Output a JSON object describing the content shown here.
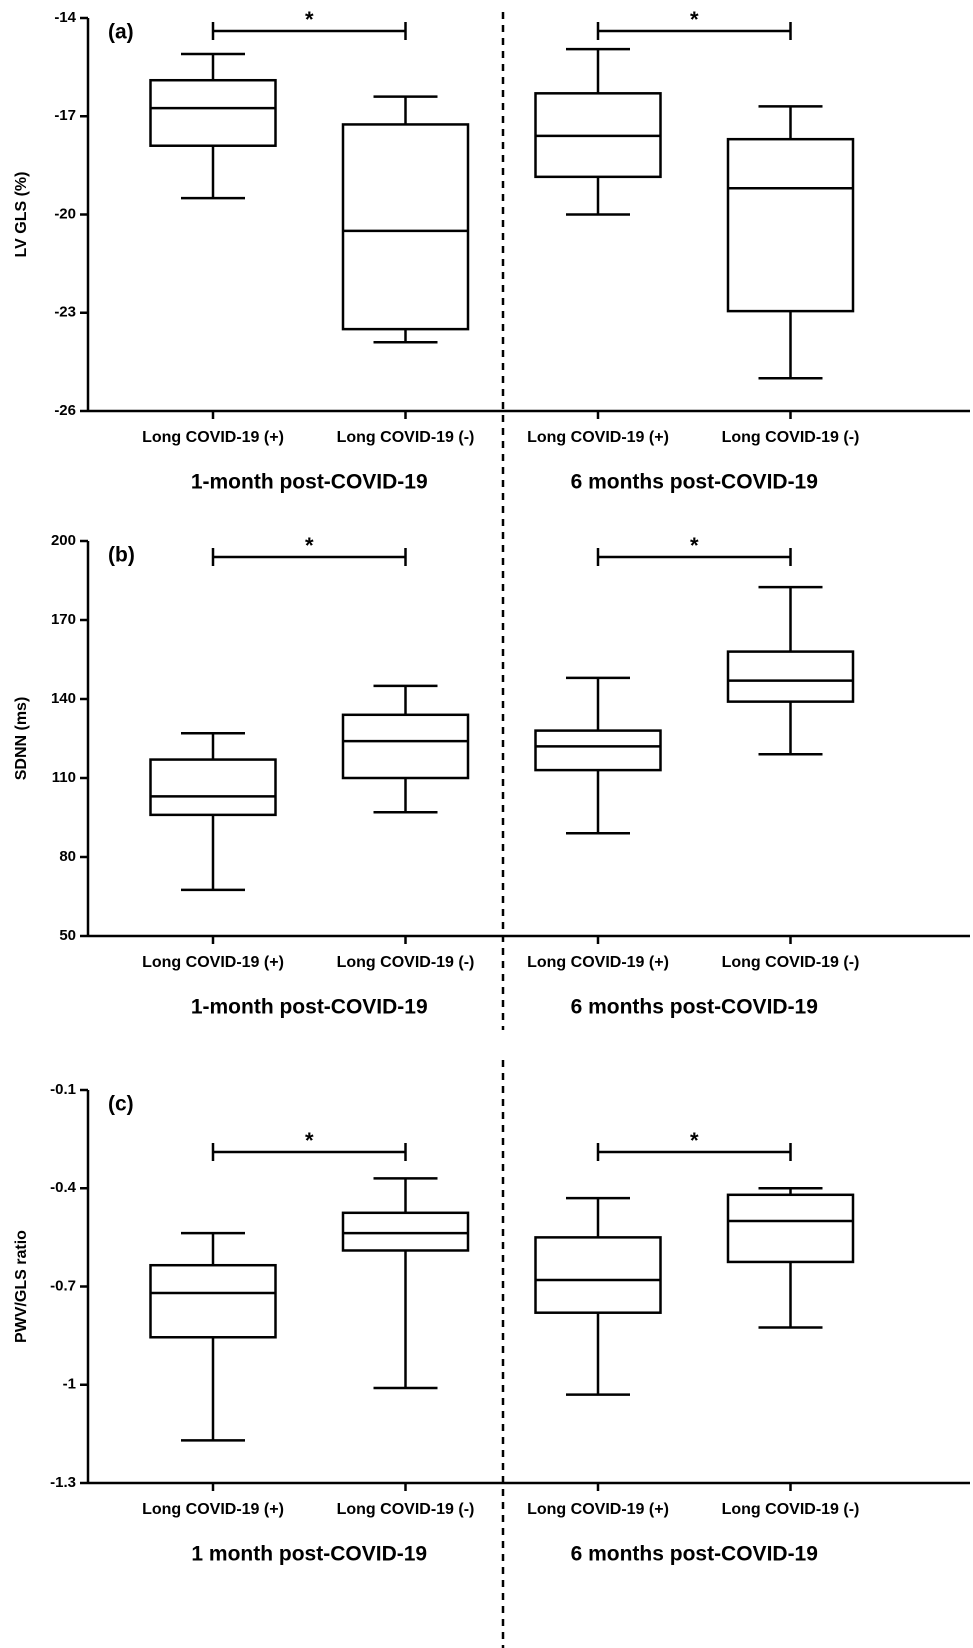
{
  "chart_data": [
    {
      "type": "box",
      "panel_label": "(a)",
      "y_label": "LV GLS (%)",
      "categories": [
        "Long COVID-19 (+)",
        "Long COVID-19 (-)",
        "Long COVID-19 (+)",
        "Long COVID-19 (-)"
      ],
      "groups": [
        "1-month post-COVID-19",
        "6 months post-COVID-19"
      ],
      "boxes": [
        {
          "min": -19.5,
          "q1": -17.9,
          "median": -16.75,
          "q3": -15.9,
          "max": -15.1
        },
        {
          "min": -23.9,
          "q1": -23.5,
          "median": -20.5,
          "q3": -17.25,
          "max": -16.4
        },
        {
          "min": -20,
          "q1": -18.85,
          "median": -17.6,
          "q3": -16.3,
          "max": -14.95
        },
        {
          "min": -25,
          "q1": -22.95,
          "median": -19.2,
          "q3": -17.7,
          "max": -16.7
        }
      ],
      "significance_marks": [
        "*",
        "*"
      ],
      "ylim": [
        -26,
        -14
      ],
      "yticks": [
        -26,
        -23,
        -20,
        -17,
        -14
      ]
    },
    {
      "type": "box",
      "panel_label": "(b)",
      "y_label": "SDNN (ms)",
      "categories": [
        "Long COVID-19 (+)",
        "Long COVID-19 (-)",
        "Long COVID-19 (+)",
        "Long COVID-19 (-)"
      ],
      "groups": [
        "1-month post-COVID-19",
        "6 months post-COVID-19"
      ],
      "boxes": [
        {
          "min": 67.5,
          "q1": 96,
          "median": 103,
          "q3": 117,
          "max": 127
        },
        {
          "min": 97,
          "q1": 110,
          "median": 124,
          "q3": 134,
          "max": 145
        },
        {
          "min": 89,
          "q1": 113,
          "median": 122,
          "q3": 128,
          "max": 148
        },
        {
          "min": 119,
          "q1": 139,
          "median": 147,
          "q3": 158,
          "max": 182.5
        }
      ],
      "significance_marks": [
        "*",
        "*"
      ],
      "ylim": [
        50,
        200
      ],
      "yticks": [
        50,
        80,
        110,
        140,
        170,
        200
      ]
    },
    {
      "type": "box",
      "panel_label": "(c)",
      "y_label": "PWV/GLS ratio",
      "categories": [
        "Long COVID-19 (+)",
        "Long COVID-19 (-)",
        "Long COVID-19 (+)",
        "Long COVID-19 (-)"
      ],
      "groups": [
        "1 month post-COVID-19",
        "6 months post-COVID-19"
      ],
      "boxes": [
        {
          "min": -1.17,
          "q1": -0.855,
          "median": -0.72,
          "q3": -0.635,
          "max": -0.537
        },
        {
          "min": -1.01,
          "q1": -0.59,
          "median": -0.537,
          "q3": -0.475,
          "max": -0.37
        },
        {
          "min": -1.03,
          "q1": -0.78,
          "median": -0.68,
          "q3": -0.55,
          "max": -0.43
        },
        {
          "min": -0.825,
          "q1": -0.625,
          "median": -0.5,
          "q3": -0.42,
          "max": -0.4
        }
      ],
      "significance_marks": [
        "*",
        "*"
      ],
      "ylim": [
        -1.3,
        -0.1
      ],
      "yticks": [
        -1.3,
        -1.0,
        {
          "value": -0.7,
          "label": "-0.7"
        },
        {
          "value": -0.4,
          "label": "-0.4"
        },
        -0.1
      ]
    }
  ]
}
